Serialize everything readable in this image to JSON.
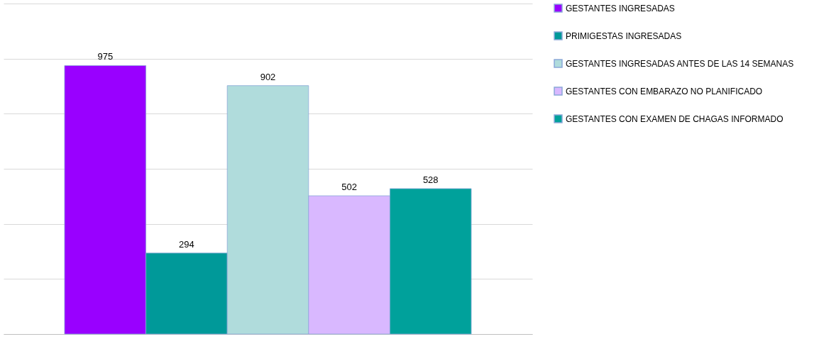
{
  "chart_data": {
    "type": "bar",
    "categories": [
      null
    ],
    "series": [
      {
        "name": "GESTANTES INGRESADAS",
        "color": "#9900ff",
        "values": [
          975
        ]
      },
      {
        "name": "PRIMIGESTAS INGRESADAS",
        "color": "#009999",
        "values": [
          294
        ]
      },
      {
        "name": "GESTANTES INGRESADAS ANTES DE LAS 14 SEMANAS",
        "color": "#b0dcdc",
        "values": [
          902
        ]
      },
      {
        "name": "GESTANTES CON EMBARAZO NO PLANIFICADO",
        "color": "#d9b8ff",
        "values": [
          502
        ]
      },
      {
        "name": "GESTANTES CON EXAMEN DE CHAGAS INFORMADO",
        "color": "#00a19b",
        "values": [
          528
        ]
      }
    ],
    "ylim": [
      0,
      1200
    ],
    "yticks": [
      {
        "value": 0,
        "label": null
      },
      {
        "value": 200,
        "label": null
      },
      {
        "value": 400,
        "label": null
      },
      {
        "value": 600,
        "label": null
      },
      {
        "value": 800,
        "label": null
      },
      {
        "value": 1000,
        "label": null
      },
      {
        "value": 1200,
        "label": null
      }
    ],
    "tick_labels": false,
    "grid": "y",
    "legend": "right",
    "data_labels": true
  }
}
